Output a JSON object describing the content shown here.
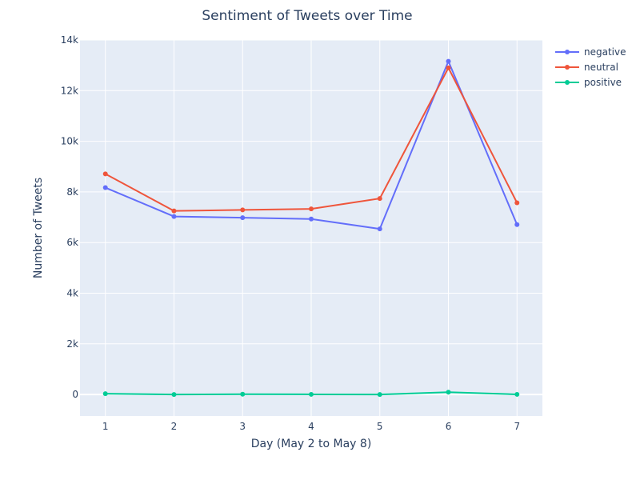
{
  "chart_data": {
    "type": "line",
    "title": "Sentiment of Tweets over Time",
    "xlabel": "Day (May 2 to May 8)",
    "ylabel": "Number of Tweets",
    "x": [
      1,
      2,
      3,
      4,
      5,
      6,
      7
    ],
    "xticks": [
      1,
      2,
      3,
      4,
      5,
      6,
      7
    ],
    "xlim": [
      0.63,
      7.37
    ],
    "ylim": [
      -850,
      14000
    ],
    "yticks": [
      0,
      2000,
      4000,
      6000,
      8000,
      10000,
      12000,
      14000
    ],
    "ytick_labels": [
      "0",
      "2k",
      "4k",
      "6k",
      "8k",
      "10k",
      "12k",
      "14k"
    ],
    "grid": true,
    "legend_position": "top-right",
    "series": [
      {
        "name": "negative",
        "color": "#636efa",
        "values": [
          8170,
          7030,
          6980,
          6930,
          6540,
          13160,
          6710
        ]
      },
      {
        "name": "neutral",
        "color": "#ef553b",
        "values": [
          8710,
          7250,
          7290,
          7330,
          7740,
          12900,
          7570
        ]
      },
      {
        "name": "positive",
        "color": "#00cc96",
        "values": [
          30,
          0,
          10,
          5,
          0,
          90,
          5
        ]
      }
    ]
  }
}
